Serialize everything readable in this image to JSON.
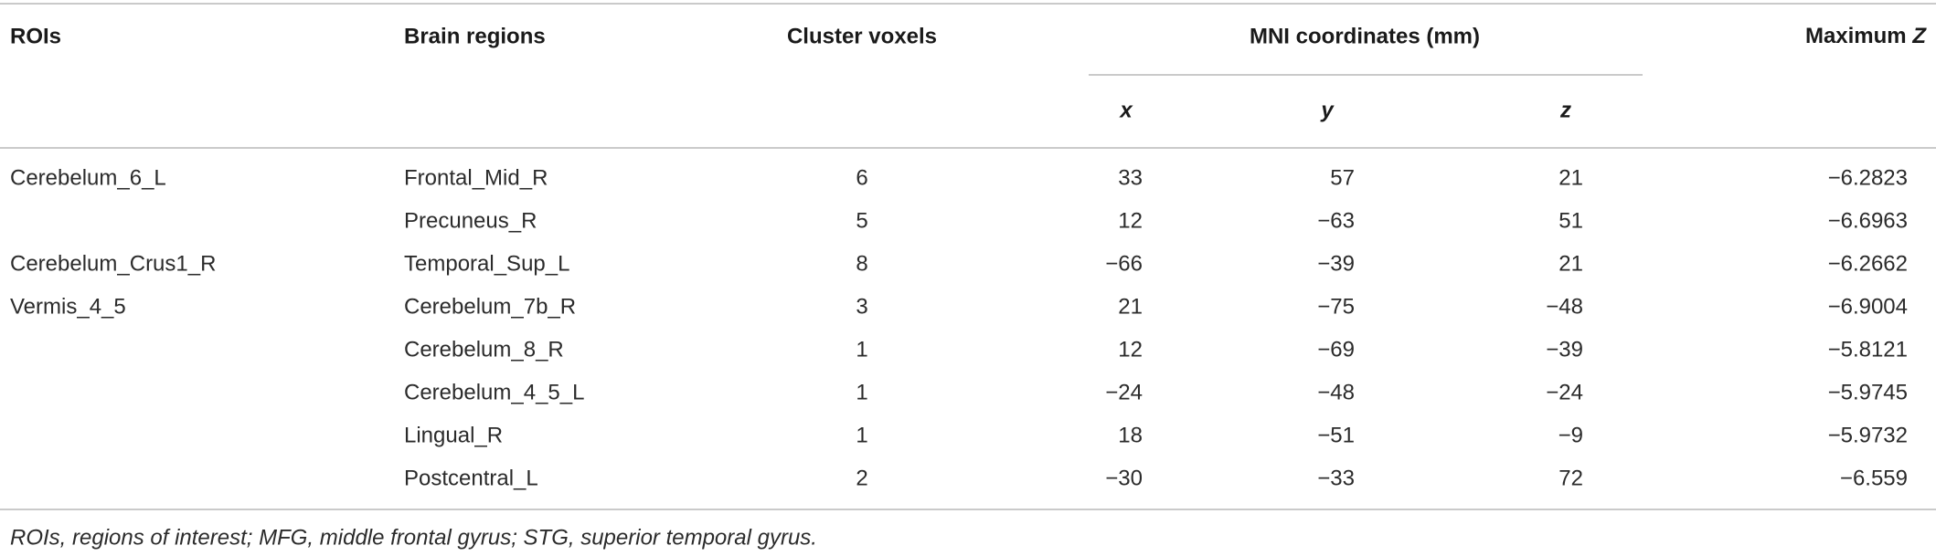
{
  "table": {
    "header": {
      "rois": "ROIs",
      "regions": "Brain regions",
      "voxels": "Cluster voxels",
      "mni": "MNI coordinates (mm)",
      "max_z": {
        "text": "Maximum",
        "symbol": "Z"
      }
    },
    "subheader": [
      "x",
      "y",
      "z"
    ],
    "groups": [
      {
        "roi": "Cerebelum_6_L",
        "rows": [
          [
            "Frontal_Mid_R",
            "6",
            "33",
            "57",
            "21",
            "−6.2823"
          ],
          [
            "Precuneus_R",
            "5",
            "12",
            "−63",
            "51",
            "−6.6963"
          ]
        ]
      },
      {
        "roi": "Cerebelum_Crus1_R",
        "rows": [
          [
            "Temporal_Sup_L",
            "8",
            "−66",
            "−39",
            "21",
            "−6.2662"
          ]
        ]
      },
      {
        "roi": "Vermis_4_5",
        "rows": [
          [
            "Cerebelum_7b_R",
            "3",
            "21",
            "−75",
            "−48",
            "−6.9004"
          ],
          [
            "Cerebelum_8_R",
            "1",
            "12",
            "−69",
            "−39",
            "−5.8121"
          ],
          [
            "Cerebelum_4_5_L",
            "1",
            "−24",
            "−48",
            "−24",
            "−5.9745"
          ],
          [
            "Lingual_R",
            "1",
            "18",
            "−51",
            "−9",
            "−5.9732"
          ],
          [
            "Postcentral_L",
            "2",
            "−30",
            "−33",
            "72",
            "−6.559"
          ]
        ]
      }
    ],
    "footnote": "ROIs, regions of interest; MFG, middle frontal gyrus; STG, superior temporal gyrus."
  }
}
